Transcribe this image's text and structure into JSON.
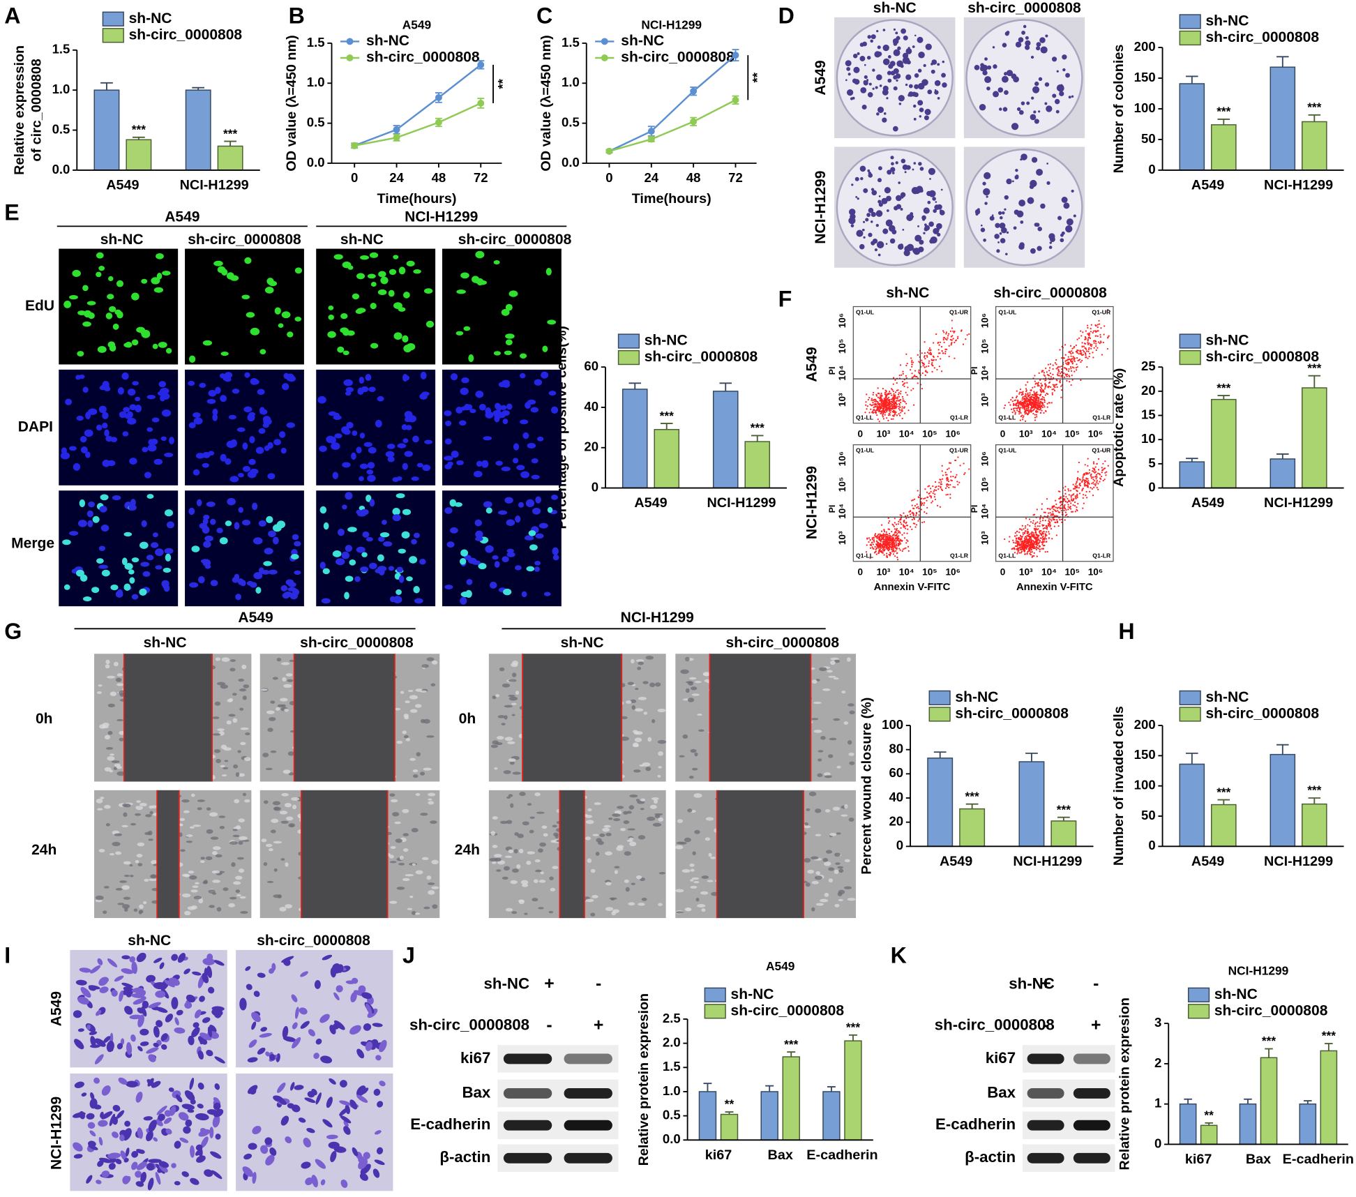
{
  "chart_data": [
    {
      "panel": "A",
      "type": "bar",
      "y_label": [
        "Relative expression",
        "of circ_0000808"
      ],
      "categories": [
        "A549",
        "NCI-H1299"
      ],
      "series": [
        {
          "name": "sh-NC",
          "color": "#779fd6",
          "values": [
            1.0,
            1.0
          ],
          "errors": [
            0.09,
            0.03
          ]
        },
        {
          "name": "sh-circ_0000808",
          "color": "#a9d46f",
          "values": [
            0.38,
            0.3
          ],
          "errors": [
            0.03,
            0.06
          ],
          "annotations": [
            "***",
            "***"
          ]
        }
      ],
      "ylim": [
        0,
        1.5
      ],
      "yticks": [
        {
          "value": 0,
          "label": "0.0"
        },
        0.5,
        {
          "value": 1,
          "label": "1.0"
        },
        1.5
      ]
    },
    {
      "panel": "B",
      "type": "line",
      "title": "A549",
      "y_label": "OD value (λ=450 nm)",
      "x_label": "Time(hours)",
      "x": [
        0,
        24,
        48,
        72
      ],
      "xlim": [
        -13,
        84
      ],
      "xticks": [
        0,
        24,
        48,
        72
      ],
      "series": [
        {
          "name": "sh-NC",
          "color": "#5b8fd1",
          "values": [
            0.22,
            0.42,
            0.82,
            1.23
          ],
          "errors": [
            0.03,
            0.05,
            0.06,
            0.05
          ]
        },
        {
          "name": "sh-circ_0000808",
          "color": "#8fca55",
          "values": [
            0.22,
            0.32,
            0.51,
            0.75
          ],
          "errors": [
            0.03,
            0.04,
            0.05,
            0.06
          ]
        }
      ],
      "ylim": [
        0,
        1.5
      ],
      "yticks": [
        {
          "value": 0,
          "label": "0.0"
        },
        0.5,
        {
          "value": 1,
          "label": "1.0"
        },
        1.5
      ],
      "significance": "**"
    },
    {
      "panel": "C",
      "type": "line",
      "title": "NCI-H1299",
      "y_label": "OD value (λ=450 nm)",
      "x_label": "Time(hours)",
      "x": [
        0,
        24,
        48,
        72
      ],
      "xlim": [
        -13,
        84
      ],
      "xticks": [
        0,
        24,
        48,
        72
      ],
      "series": [
        {
          "name": "sh-NC",
          "color": "#5b8fd1",
          "values": [
            0.15,
            0.4,
            0.9,
            1.35
          ],
          "errors": [
            0.02,
            0.06,
            0.05,
            0.07
          ]
        },
        {
          "name": "sh-circ_0000808",
          "color": "#8fca55",
          "values": [
            0.15,
            0.3,
            0.52,
            0.79
          ],
          "errors": [
            0.02,
            0.03,
            0.05,
            0.05
          ]
        }
      ],
      "ylim": [
        0,
        1.5
      ],
      "yticks": [
        {
          "value": 0,
          "label": "0.0"
        },
        0.5,
        {
          "value": 1,
          "label": "1.0"
        },
        1.5
      ],
      "significance": "**"
    },
    {
      "panel": "D",
      "type": "bar",
      "y_label": "Number of colonies",
      "categories": [
        "A549",
        "NCI-H1299"
      ],
      "series": [
        {
          "name": "sh-NC",
          "color": "#779fd6",
          "values": [
            141,
            168
          ],
          "errors": [
            12,
            17
          ]
        },
        {
          "name": "sh-circ_0000808",
          "color": "#a9d46f",
          "values": [
            74,
            79
          ],
          "errors": [
            9,
            11
          ],
          "annotations": [
            "***",
            "***"
          ]
        }
      ],
      "ylim": [
        0,
        200
      ],
      "yticks": [
        0,
        50,
        100,
        150,
        200
      ]
    },
    {
      "panel": "E",
      "type": "bar",
      "y_label": "Percentage of positive cells(%)",
      "categories": [
        "A549",
        "NCI-H1299"
      ],
      "series": [
        {
          "name": "sh-NC",
          "color": "#779fd6",
          "values": [
            49,
            48
          ],
          "errors": [
            3,
            4
          ]
        },
        {
          "name": "sh-circ_0000808",
          "color": "#a9d46f",
          "values": [
            29,
            23
          ],
          "errors": [
            3,
            3
          ],
          "annotations": [
            "***",
            "***"
          ]
        }
      ],
      "ylim": [
        0,
        60
      ],
      "yticks": [
        0,
        20,
        40,
        60
      ]
    },
    {
      "panel": "F",
      "type": "bar",
      "y_label": "Apoptotic rate (%)",
      "categories": [
        "A549",
        "NCI-H1299"
      ],
      "series": [
        {
          "name": "sh-NC",
          "color": "#779fd6",
          "values": [
            5.4,
            6.0
          ],
          "errors": [
            0.7,
            1.0
          ]
        },
        {
          "name": "sh-circ_0000808",
          "color": "#a9d46f",
          "values": [
            18.3,
            20.7
          ],
          "errors": [
            0.8,
            2.5
          ],
          "annotations": [
            "***",
            "***"
          ]
        }
      ],
      "ylim": [
        0,
        25
      ],
      "yticks": [
        0,
        5,
        10,
        15,
        20,
        25
      ]
    },
    {
      "panel": "G",
      "type": "bar",
      "y_label": "Percent wound closure (%)",
      "categories": [
        "A549",
        "NCI-H1299"
      ],
      "series": [
        {
          "name": "sh-NC",
          "color": "#779fd6",
          "values": [
            73,
            70
          ],
          "errors": [
            5,
            7
          ]
        },
        {
          "name": "sh-circ_0000808",
          "color": "#a9d46f",
          "values": [
            31,
            21
          ],
          "errors": [
            4,
            3
          ],
          "annotations": [
            "***",
            "***"
          ]
        }
      ],
      "ylim": [
        0,
        100
      ],
      "yticks": [
        0,
        20,
        40,
        60,
        80,
        100
      ]
    },
    {
      "panel": "H",
      "type": "bar",
      "y_label": "Number of invaded cells",
      "categories": [
        "A549",
        "NCI-H1299"
      ],
      "series": [
        {
          "name": "sh-NC",
          "color": "#779fd6",
          "values": [
            136,
            152
          ],
          "errors": [
            18,
            16
          ]
        },
        {
          "name": "sh-circ_0000808",
          "color": "#a9d46f",
          "values": [
            69,
            70
          ],
          "errors": [
            8,
            10
          ],
          "annotations": [
            "***",
            "***"
          ]
        }
      ],
      "ylim": [
        0,
        200
      ],
      "yticks": [
        0,
        50,
        100,
        150,
        200
      ]
    },
    {
      "panel": "J",
      "type": "bar",
      "title": "A549",
      "y_label": "Relative protein expresion",
      "categories": [
        "ki67",
        "Bax",
        "E-cadherin"
      ],
      "series": [
        {
          "name": "sh-NC",
          "color": "#779fd6",
          "values": [
            1.0,
            1.0,
            1.0
          ],
          "errors": [
            0.17,
            0.12,
            0.1
          ]
        },
        {
          "name": "sh-circ_0000808",
          "color": "#a9d46f",
          "values": [
            0.53,
            1.72,
            2.05
          ],
          "errors": [
            0.05,
            0.1,
            0.12
          ],
          "annotations": [
            "**",
            "***",
            "***"
          ]
        }
      ],
      "ylim": [
        0,
        2.5
      ],
      "yticks": [
        {
          "value": 0,
          "label": "0.0"
        },
        0.5,
        {
          "value": 1,
          "label": "1.0"
        },
        1.5,
        {
          "value": 2,
          "label": "2.0"
        },
        2.5
      ]
    },
    {
      "panel": "K",
      "type": "bar",
      "title": "NCI-H1299",
      "y_label": "Relative protein expresion",
      "categories": [
        "ki67",
        "Bax",
        "E-cadherin"
      ],
      "series": [
        {
          "name": "sh-NC",
          "color": "#779fd6",
          "values": [
            1.0,
            1.0,
            1.0
          ],
          "errors": [
            0.12,
            0.12,
            0.08
          ]
        },
        {
          "name": "sh-circ_0000808",
          "color": "#a9d46f",
          "values": [
            0.47,
            2.15,
            2.32
          ],
          "errors": [
            0.06,
            0.22,
            0.18
          ],
          "annotations": [
            "**",
            "***",
            "***"
          ]
        }
      ],
      "ylim": [
        0,
        3
      ],
      "yticks": [
        0,
        1,
        2,
        3
      ]
    }
  ],
  "figure": {
    "D": {
      "columns": [
        "sh-NC",
        "sh-circ_0000808"
      ],
      "rows": [
        "A549",
        "NCI-H1299"
      ]
    },
    "E": {
      "groups": [
        "A549",
        "NCI-H1299"
      ],
      "columns": [
        "sh-NC",
        "sh-circ_0000808",
        "sh-NC",
        "sh-circ_0000808"
      ],
      "rows": [
        "EdU",
        "DAPI",
        "Merge"
      ]
    },
    "F": {
      "columns": [
        "sh-NC",
        "sh-circ_0000808"
      ],
      "rows": [
        "A549",
        "NCI-H1299"
      ],
      "x_label": "Annexin V-FITC",
      "y_label": "PI",
      "x_ticks": [
        "0",
        "10³",
        "10⁴",
        "10⁵",
        "10⁶"
      ],
      "y_ticks": [
        "10³",
        "10⁴",
        "10⁵",
        "10⁶"
      ],
      "quadrants": [
        "Q1-UL",
        "Q1-UR",
        "Q1-LL",
        "Q1-LR"
      ]
    },
    "G": {
      "groups": [
        "A549",
        "NCI-H1299"
      ],
      "columns": [
        "sh-NC",
        "sh-circ_0000808",
        "sh-NC",
        "sh-circ_0000808"
      ],
      "rows": [
        "0h",
        "24h"
      ]
    },
    "I": {
      "panel": "I",
      "columns": [
        "sh-NC",
        "sh-circ_0000808"
      ],
      "rows": [
        "A549",
        "NCI-H1299"
      ]
    },
    "J": {
      "conditions": [
        "sh-NC",
        "sh-circ_0000808"
      ],
      "signs": [
        [
          "+",
          "-"
        ],
        [
          "-",
          "+"
        ]
      ],
      "proteins": [
        "ki67",
        "Bax",
        "E-cadherin",
        "β-actin"
      ]
    },
    "K": {
      "conditions": [
        "sh-NC",
        "sh-circ_0000808"
      ],
      "signs": [
        [
          "+",
          "-"
        ],
        [
          "-",
          "+"
        ]
      ],
      "proteins": [
        "ki67",
        "Bax",
        "E-cadherin",
        "β-actin"
      ]
    }
  }
}
